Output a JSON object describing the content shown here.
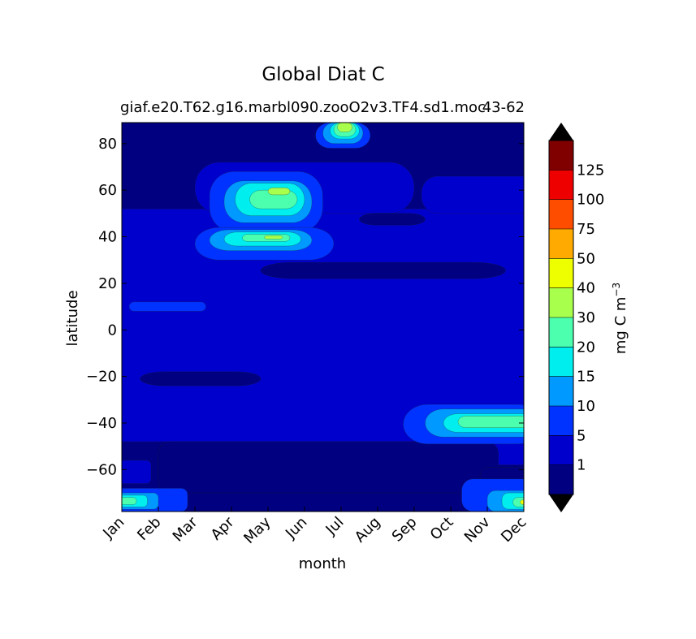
{
  "chart_data": {
    "type": "heatmap",
    "title": "Global Diat C",
    "subtitle_left": "giaf.e20.T62.g16.marbl090.zooO2v3.TF4.sd1.moc",
    "subtitle_right": "43-62",
    "xlabel": "month",
    "ylabel": "latitude",
    "x_categories": [
      "Jan",
      "Feb",
      "Mar",
      "Apr",
      "May",
      "Jun",
      "Jul",
      "Aug",
      "Sep",
      "Oct",
      "Nov",
      "Dec"
    ],
    "yticks": [
      80,
      60,
      40,
      20,
      0,
      -20,
      -40,
      -60
    ],
    "ylim": [
      -78,
      89
    ],
    "colorbar": {
      "label": "mg C m",
      "label_exponent": "−3",
      "tick_labels": [
        "1",
        "5",
        "10",
        "15",
        "20",
        "30",
        "40",
        "50",
        "75",
        "100",
        "125"
      ],
      "colors": [
        "#000080",
        "#0000cd",
        "#0033ff",
        "#0099ff",
        "#00eeee",
        "#4cffaf",
        "#a8ff4c",
        "#eeff00",
        "#ffaa00",
        "#ff4d00",
        "#ee0000",
        "#800000"
      ],
      "extend": "both"
    },
    "features": [
      {
        "name": "Arctic July maximum",
        "month": 7.0,
        "lat": 87,
        "level": "40-50"
      },
      {
        "name": "Northern spring bloom",
        "month": 5.0,
        "lat": 60,
        "level": "30-40"
      },
      {
        "name": "Mid-latitude spring bloom",
        "month": 5.1,
        "lat": 40,
        "level": "30-40"
      },
      {
        "name": "Southern Ocean spring bloom",
        "month": 11.5,
        "lat": -39,
        "level": "20-30"
      },
      {
        "name": "Antarctic summer maximum",
        "month": 11.8,
        "lat": -76,
        "level": "40-50"
      },
      {
        "name": "Antarctic January bloom",
        "month": 1.2,
        "lat": -73,
        "level": "30-40"
      }
    ]
  }
}
